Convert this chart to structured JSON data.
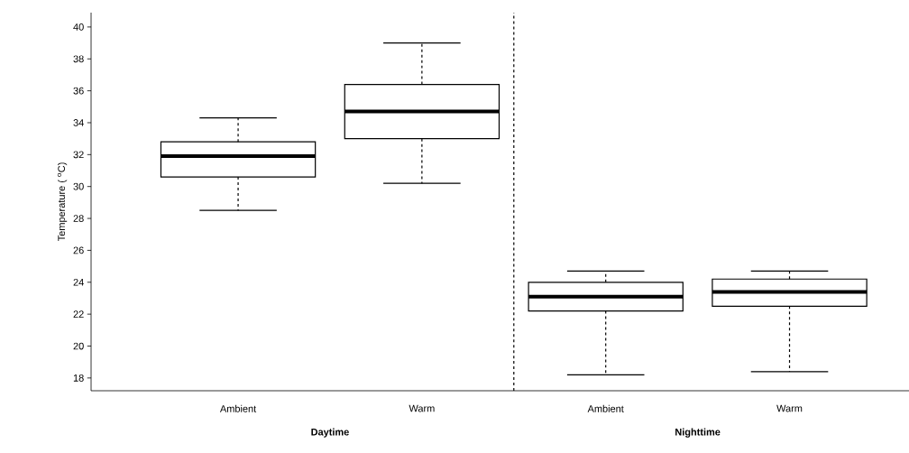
{
  "chart_data": {
    "type": "box",
    "ylabel": "Temperature ( $^{o}$C)",
    "categories": [
      "Ambient",
      "Warm",
      "Ambient",
      "Warm"
    ],
    "boxes": [
      {
        "low": 28.5,
        "q1": 30.6,
        "median": 31.9,
        "q3": 32.8,
        "high": 34.3
      },
      {
        "low": 30.2,
        "q1": 33.0,
        "median": 34.7,
        "q3": 36.4,
        "high": 39.0
      },
      {
        "low": 18.2,
        "q1": 22.2,
        "median": 23.1,
        "q3": 24.0,
        "high": 24.7
      },
      {
        "low": 18.4,
        "q1": 22.5,
        "median": 23.4,
        "q3": 24.2,
        "high": 24.7
      }
    ],
    "ylim": [
      17.2,
      40.9
    ],
    "yticks": [
      18,
      20,
      22,
      24,
      26,
      28,
      30,
      32,
      34,
      36,
      38,
      40
    ],
    "annotations": [
      "Daytime",
      "Nighttime"
    ]
  }
}
